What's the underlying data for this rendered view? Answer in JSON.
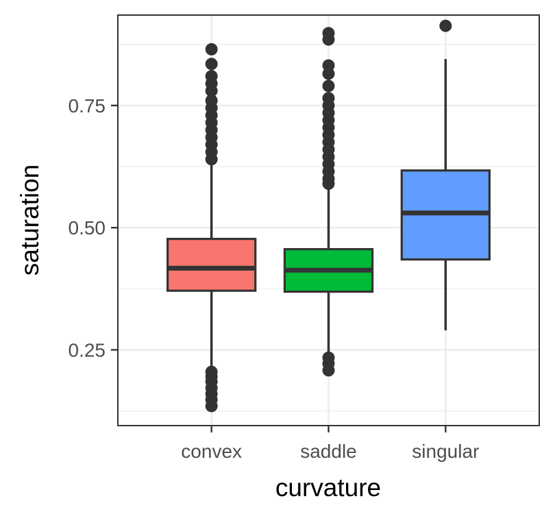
{
  "chart_data": {
    "type": "boxplot",
    "xlabel": "curvature",
    "ylabel": "saturation",
    "ylim": [
      0.095,
      0.935
    ],
    "yticks": [
      0.25,
      0.5,
      0.75
    ],
    "ytick_labels": [
      "0.25",
      "0.50",
      "0.75"
    ],
    "grid": true,
    "legend": "none",
    "categories": [
      "convex",
      "saddle",
      "singular"
    ],
    "colors": [
      "#F8766D",
      "#00BA38",
      "#619CFF"
    ],
    "boxes": [
      {
        "category": "convex",
        "min": 0.212,
        "q1": 0.371,
        "median": 0.417,
        "q3": 0.477,
        "max": 0.636,
        "outliers": [
          0.865,
          0.835,
          0.81,
          0.795,
          0.78,
          0.76,
          0.745,
          0.73,
          0.715,
          0.7,
          0.685,
          0.67,
          0.655,
          0.64,
          0.205,
          0.195,
          0.185,
          0.172,
          0.16,
          0.148,
          0.135
        ]
      },
      {
        "category": "saddle",
        "min": 0.238,
        "q1": 0.369,
        "median": 0.413,
        "q3": 0.456,
        "max": 0.589,
        "outliers": [
          0.898,
          0.885,
          0.832,
          0.815,
          0.79,
          0.765,
          0.75,
          0.735,
          0.72,
          0.705,
          0.69,
          0.675,
          0.66,
          0.645,
          0.63,
          0.615,
          0.6,
          0.59,
          0.234,
          0.222,
          0.208
        ]
      },
      {
        "category": "singular",
        "min": 0.29,
        "q1": 0.435,
        "median": 0.53,
        "q3": 0.617,
        "max": 0.845,
        "outliers": [
          0.913
        ]
      }
    ]
  }
}
